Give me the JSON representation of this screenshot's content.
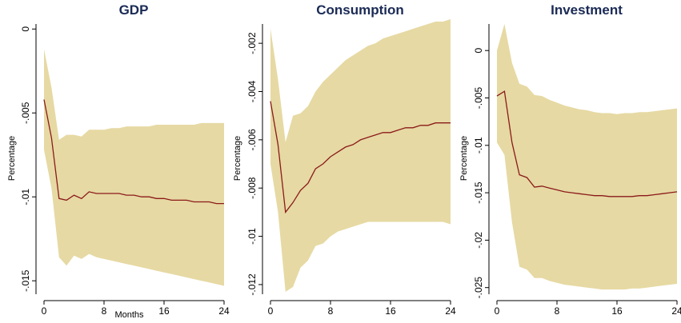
{
  "colors": {
    "band": "#e6d9a3",
    "line": "#8b1a1a",
    "title": "#1a2a55",
    "axis": "#000000"
  },
  "chart_data": [
    {
      "type": "area",
      "title": "GDP",
      "xlabel": "Months",
      "ylabel": "Percentage",
      "xlim": [
        0,
        24
      ],
      "ylim": [
        -0.0158,
        0.0003
      ],
      "xticks": [
        0,
        8,
        16,
        24
      ],
      "xticklabels": [
        "0",
        "8",
        "16",
        "24"
      ],
      "yticks": [
        0,
        -0.005,
        -0.01,
        -0.015
      ],
      "yticklabels": [
        "0",
        "-.005",
        "-.01",
        "-.015"
      ],
      "grid": false,
      "x": [
        0,
        1,
        2,
        3,
        4,
        5,
        6,
        7,
        8,
        9,
        10,
        11,
        12,
        13,
        14,
        15,
        16,
        17,
        18,
        19,
        20,
        21,
        22,
        23,
        24
      ],
      "series": [
        {
          "role": "response",
          "values": [
            -0.0042,
            -0.0065,
            -0.0101,
            -0.0102,
            -0.0099,
            -0.0101,
            -0.0097,
            -0.0098,
            -0.0098,
            -0.0098,
            -0.0098,
            -0.0099,
            -0.0099,
            -0.01,
            -0.01,
            -0.0101,
            -0.0101,
            -0.0102,
            -0.0102,
            -0.0102,
            -0.0103,
            -0.0103,
            -0.0103,
            -0.0104,
            -0.0104
          ]
        },
        {
          "role": "upper",
          "values": [
            -0.0012,
            -0.0035,
            -0.0066,
            -0.0063,
            -0.0063,
            -0.0064,
            -0.006,
            -0.006,
            -0.006,
            -0.0059,
            -0.0059,
            -0.0058,
            -0.0058,
            -0.0058,
            -0.0058,
            -0.0057,
            -0.0057,
            -0.0057,
            -0.0057,
            -0.0057,
            -0.0057,
            -0.0056,
            -0.0056,
            -0.0056,
            -0.0056
          ]
        },
        {
          "role": "lower",
          "values": [
            -0.0072,
            -0.0095,
            -0.0136,
            -0.0141,
            -0.0135,
            -0.0137,
            -0.0134,
            -0.0136,
            -0.0137,
            -0.0138,
            -0.0139,
            -0.014,
            -0.0141,
            -0.0142,
            -0.0143,
            -0.0144,
            -0.0145,
            -0.0146,
            -0.0147,
            -0.0148,
            -0.0149,
            -0.015,
            -0.0151,
            -0.0152,
            -0.0153
          ]
        }
      ]
    },
    {
      "type": "area",
      "title": "Consumption",
      "xlabel": "",
      "ylabel": "Percentage",
      "xlim": [
        0,
        24
      ],
      "ylim": [
        -0.0124,
        -0.0012
      ],
      "xticks": [
        0,
        8,
        16,
        24
      ],
      "xticklabels": [
        "0",
        "8",
        "16",
        "24"
      ],
      "yticks": [
        -0.002,
        -0.004,
        -0.006,
        -0.008,
        -0.01,
        -0.012
      ],
      "yticklabels": [
        "-.002",
        "-.004",
        "-.006",
        "-.008",
        "-.01",
        "-.012"
      ],
      "grid": false,
      "x": [
        0,
        1,
        2,
        3,
        4,
        5,
        6,
        7,
        8,
        9,
        10,
        11,
        12,
        13,
        14,
        15,
        16,
        17,
        18,
        19,
        20,
        21,
        22,
        23,
        24
      ],
      "series": [
        {
          "role": "response",
          "values": [
            -0.0044,
            -0.0062,
            -0.009,
            -0.0086,
            -0.0081,
            -0.0078,
            -0.0072,
            -0.007,
            -0.0067,
            -0.0065,
            -0.0063,
            -0.0062,
            -0.006,
            -0.0059,
            -0.0058,
            -0.0057,
            -0.0057,
            -0.0056,
            -0.0055,
            -0.0055,
            -0.0054,
            -0.0054,
            -0.0053,
            -0.0053,
            -0.0053
          ]
        },
        {
          "role": "upper",
          "values": [
            -0.0014,
            -0.0035,
            -0.0061,
            -0.005,
            -0.0049,
            -0.0046,
            -0.004,
            -0.0036,
            -0.0033,
            -0.003,
            -0.0027,
            -0.0025,
            -0.0023,
            -0.0021,
            -0.002,
            -0.0018,
            -0.0017,
            -0.0016,
            -0.0015,
            -0.0014,
            -0.0013,
            -0.0012,
            -0.0011,
            -0.0011,
            -0.001
          ]
        },
        {
          "role": "lower",
          "values": [
            -0.007,
            -0.009,
            -0.0123,
            -0.0121,
            -0.0113,
            -0.011,
            -0.0104,
            -0.0103,
            -0.01,
            -0.0098,
            -0.0097,
            -0.0096,
            -0.0095,
            -0.0094,
            -0.0094,
            -0.0094,
            -0.0094,
            -0.0094,
            -0.0094,
            -0.0094,
            -0.0094,
            -0.0094,
            -0.0094,
            -0.0094,
            -0.0095
          ]
        }
      ]
    },
    {
      "type": "area",
      "title": "Investment",
      "xlabel": "",
      "ylabel": "Percentage",
      "xlim": [
        0,
        24
      ],
      "ylim": [
        -0.0257,
        0.0028
      ],
      "xticks": [
        0,
        8,
        16,
        24
      ],
      "xticklabels": [
        "0",
        "8",
        "16",
        "24"
      ],
      "yticks": [
        0,
        -0.005,
        -0.01,
        -0.015,
        -0.02,
        -0.025
      ],
      "yticklabels": [
        "0",
        "-.005",
        "-.01",
        "-.015",
        "-.02",
        "-.025"
      ],
      "grid": false,
      "x": [
        0,
        1,
        2,
        3,
        4,
        5,
        6,
        7,
        8,
        9,
        10,
        11,
        12,
        13,
        14,
        15,
        16,
        17,
        18,
        19,
        20,
        21,
        22,
        23,
        24
      ],
      "series": [
        {
          "role": "response",
          "values": [
            -0.0048,
            -0.0043,
            -0.0097,
            -0.0131,
            -0.0134,
            -0.0144,
            -0.0143,
            -0.0145,
            -0.0147,
            -0.0149,
            -0.015,
            -0.0151,
            -0.0152,
            -0.0153,
            -0.0153,
            -0.0154,
            -0.0154,
            -0.0154,
            -0.0154,
            -0.0153,
            -0.0153,
            -0.0152,
            -0.0151,
            -0.015,
            -0.0149
          ]
        },
        {
          "role": "upper",
          "values": [
            0.0,
            0.0028,
            -0.0013,
            -0.0035,
            -0.0038,
            -0.0047,
            -0.0048,
            -0.0052,
            -0.0055,
            -0.0058,
            -0.006,
            -0.0062,
            -0.0063,
            -0.0065,
            -0.0066,
            -0.0066,
            -0.0067,
            -0.0066,
            -0.0066,
            -0.0065,
            -0.0065,
            -0.0064,
            -0.0063,
            -0.0062,
            -0.0061
          ]
        },
        {
          "role": "lower",
          "values": [
            -0.0097,
            -0.011,
            -0.0181,
            -0.0228,
            -0.0231,
            -0.024,
            -0.024,
            -0.0243,
            -0.0245,
            -0.0247,
            -0.0248,
            -0.0249,
            -0.025,
            -0.0251,
            -0.0252,
            -0.0252,
            -0.0252,
            -0.0252,
            -0.0251,
            -0.0251,
            -0.025,
            -0.0249,
            -0.0248,
            -0.0247,
            -0.0246
          ]
        }
      ]
    }
  ]
}
